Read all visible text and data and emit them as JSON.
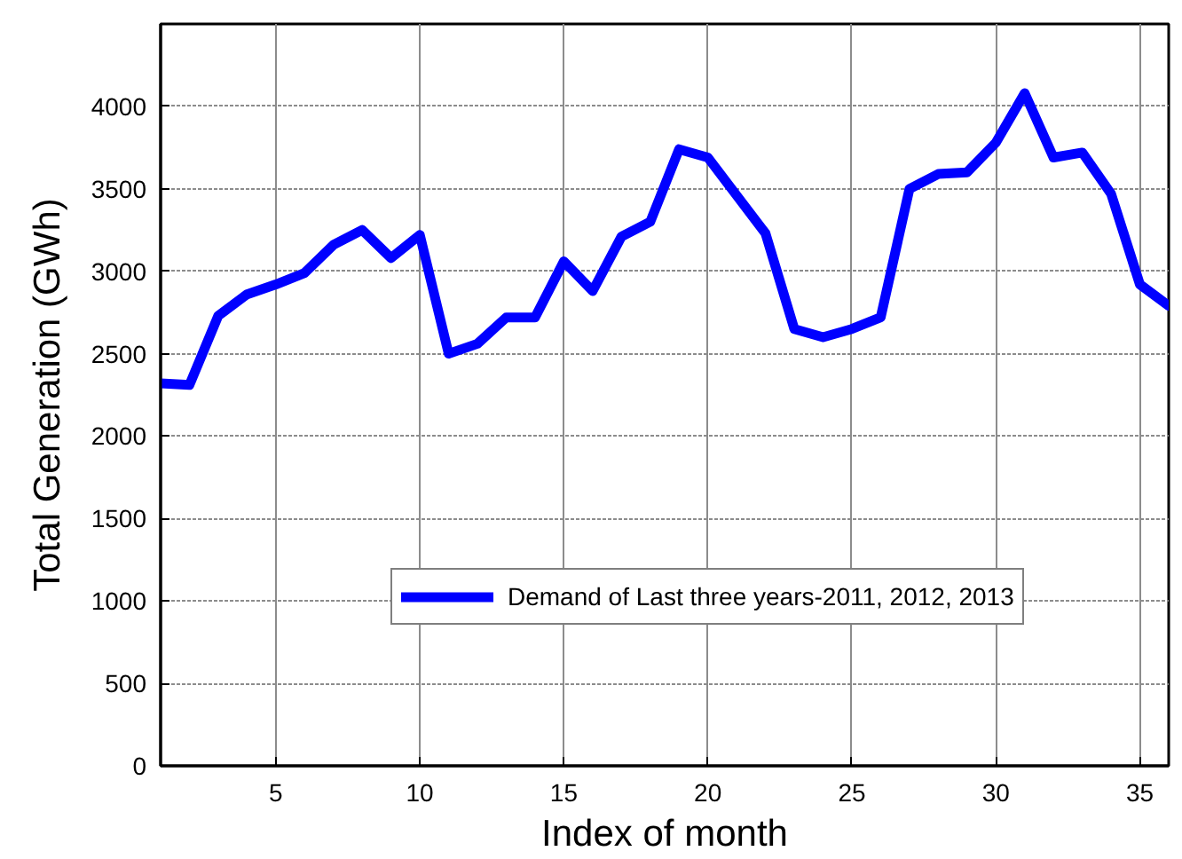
{
  "chart_data": {
    "type": "line",
    "xlabel": "Index of month",
    "ylabel": "Total Generation (GWh)",
    "x": [
      1,
      2,
      3,
      4,
      5,
      6,
      7,
      8,
      9,
      10,
      11,
      12,
      13,
      14,
      15,
      16,
      17,
      18,
      19,
      20,
      21,
      22,
      23,
      24,
      25,
      26,
      27,
      28,
      29,
      30,
      31,
      32,
      33,
      34,
      35,
      36
    ],
    "series": [
      {
        "name": "Demand of Last three years-2011, 2012, 2013",
        "color": "#0000ff",
        "values": [
          2320,
          2310,
          2730,
          2860,
          2920,
          2990,
          3160,
          3250,
          3080,
          3220,
          2500,
          2560,
          2720,
          2720,
          3060,
          2880,
          3210,
          3300,
          3740,
          3690,
          3460,
          3230,
          2650,
          2600,
          2650,
          2720,
          3500,
          3590,
          3600,
          3780,
          4080,
          3690,
          3720,
          3470,
          2920,
          2790
        ]
      }
    ],
    "xlim": [
      1,
      36
    ],
    "ylim": [
      0,
      4500
    ],
    "xticks": [
      5,
      10,
      15,
      20,
      25,
      30,
      35
    ],
    "yticks": [
      0,
      500,
      1000,
      1500,
      2000,
      2500,
      3000,
      3500,
      4000
    ],
    "grid": true,
    "legend": "bottom right",
    "line_style": "solid"
  }
}
